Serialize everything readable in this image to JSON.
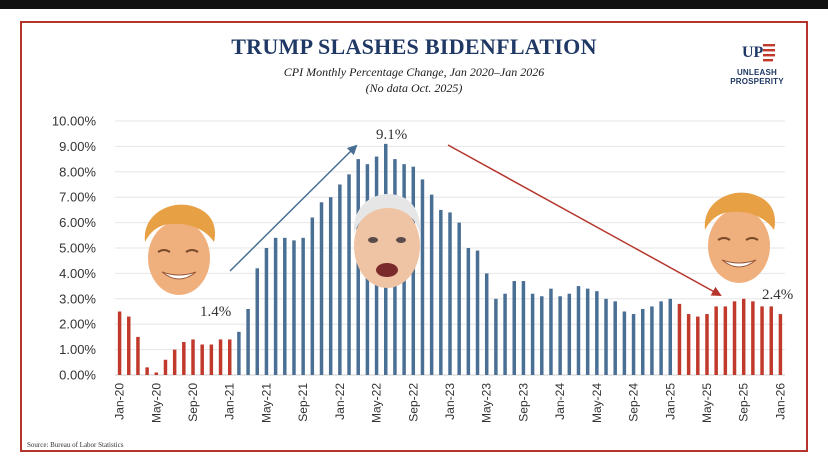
{
  "chart_data": {
    "type": "bar",
    "title": "TRUMP SLASHES BIDENFLATION",
    "subtitle": "CPI Monthly Percentage Change, Jan 2020–Jan 2026",
    "subtitle_note": "(No data Oct. 2025)",
    "source": "Source: Bureau of Labor Statistics",
    "ylim": [
      0,
      10
    ],
    "y_ticks": [
      0,
      1,
      2,
      3,
      4,
      5,
      6,
      7,
      8,
      9,
      10
    ],
    "y_tick_labels": [
      "0.00%",
      "1.00%",
      "2.00%",
      "3.00%",
      "4.00%",
      "5.00%",
      "6.00%",
      "7.00%",
      "8.00%",
      "9.00%",
      "10.00%"
    ],
    "x_tick_labels": [
      "Jan-20",
      "May-20",
      "Sep-20",
      "Jan-21",
      "May-21",
      "Sep-21",
      "Jan-22",
      "May-22",
      "Sep-22",
      "Jan-23",
      "May-23",
      "Sep-23",
      "Jan-24",
      "May-24",
      "Sep-24",
      "Jan-25",
      "May-25",
      "Sep-25",
      "Jan-26"
    ],
    "grid": true,
    "colors": {
      "trump": "#c0392b",
      "biden": "#4a6f95"
    },
    "series": [
      {
        "period": "trump-first",
        "color": "#c0392b",
        "values": [
          2.5,
          2.3,
          1.5,
          0.3,
          0.1,
          0.6,
          1.0,
          1.3,
          1.4,
          1.2,
          1.2,
          1.4,
          1.4
        ]
      },
      {
        "period": "biden",
        "color": "#4a6f95",
        "values": [
          1.7,
          2.6,
          4.2,
          5.0,
          5.4,
          5.4,
          5.3,
          5.4,
          6.2,
          6.8,
          7.0,
          7.5,
          7.9,
          8.5,
          8.3,
          8.6,
          9.1,
          8.5,
          8.3,
          8.2,
          7.7,
          7.1,
          6.5,
          6.4,
          6.0,
          5.0,
          4.9,
          4.0,
          3.0,
          3.2,
          3.7,
          3.7,
          3.2,
          3.1,
          3.4,
          3.1,
          3.2,
          3.5,
          3.4,
          3.3,
          3.0,
          2.9,
          2.5,
          2.4,
          2.6,
          2.7,
          2.9,
          3.0
        ]
      },
      {
        "period": "trump-second",
        "color": "#c0392b",
        "values": [
          2.8,
          2.4,
          2.3,
          2.4,
          2.7,
          2.7,
          2.9,
          3.0,
          2.9,
          2.7,
          2.7,
          2.4
        ]
      }
    ],
    "annotations": [
      {
        "text": "1.4%",
        "value": 1.4
      },
      {
        "text": "9.1%",
        "value": 9.1
      },
      {
        "text": "2.4%",
        "value": 2.4
      }
    ]
  },
  "logo": {
    "mark": "UP",
    "text": "UNLEASH PROSPERITY"
  },
  "images": {
    "left_face": "trump-face",
    "center_face": "biden-face",
    "right_face": "trump-face"
  }
}
